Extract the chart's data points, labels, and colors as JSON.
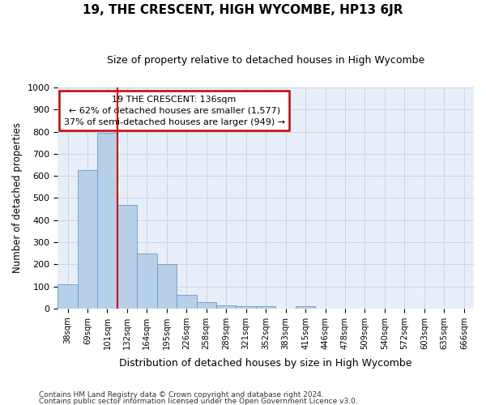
{
  "title": "19, THE CRESCENT, HIGH WYCOMBE, HP13 6JR",
  "subtitle": "Size of property relative to detached houses in High Wycombe",
  "xlabel": "Distribution of detached houses by size in High Wycombe",
  "ylabel": "Number of detached properties",
  "footer_line1": "Contains HM Land Registry data © Crown copyright and database right 2024.",
  "footer_line2": "Contains public sector information licensed under the Open Government Licence v3.0.",
  "bar_labels": [
    "38sqm",
    "69sqm",
    "101sqm",
    "132sqm",
    "164sqm",
    "195sqm",
    "226sqm",
    "258sqm",
    "289sqm",
    "321sqm",
    "352sqm",
    "383sqm",
    "415sqm",
    "446sqm",
    "478sqm",
    "509sqm",
    "540sqm",
    "572sqm",
    "603sqm",
    "635sqm",
    "666sqm"
  ],
  "bar_values": [
    110,
    625,
    795,
    470,
    250,
    200,
    60,
    30,
    15,
    12,
    10,
    0,
    12,
    0,
    0,
    0,
    0,
    0,
    0,
    0,
    0
  ],
  "bar_color": "#b8cfe8",
  "bar_edge_color": "#6699cc",
  "highlight_line_color": "#cc0000",
  "annotation_line1": "19 THE CRESCENT: 136sqm",
  "annotation_line2": "← 62% of detached houses are smaller (1,577)",
  "annotation_line3": "37% of semi-detached houses are larger (949) →",
  "ylim": [
    0,
    1000
  ],
  "yticks": [
    0,
    100,
    200,
    300,
    400,
    500,
    600,
    700,
    800,
    900,
    1000
  ],
  "grid_color": "#c8d4e8",
  "background_color": "#e8eef8"
}
